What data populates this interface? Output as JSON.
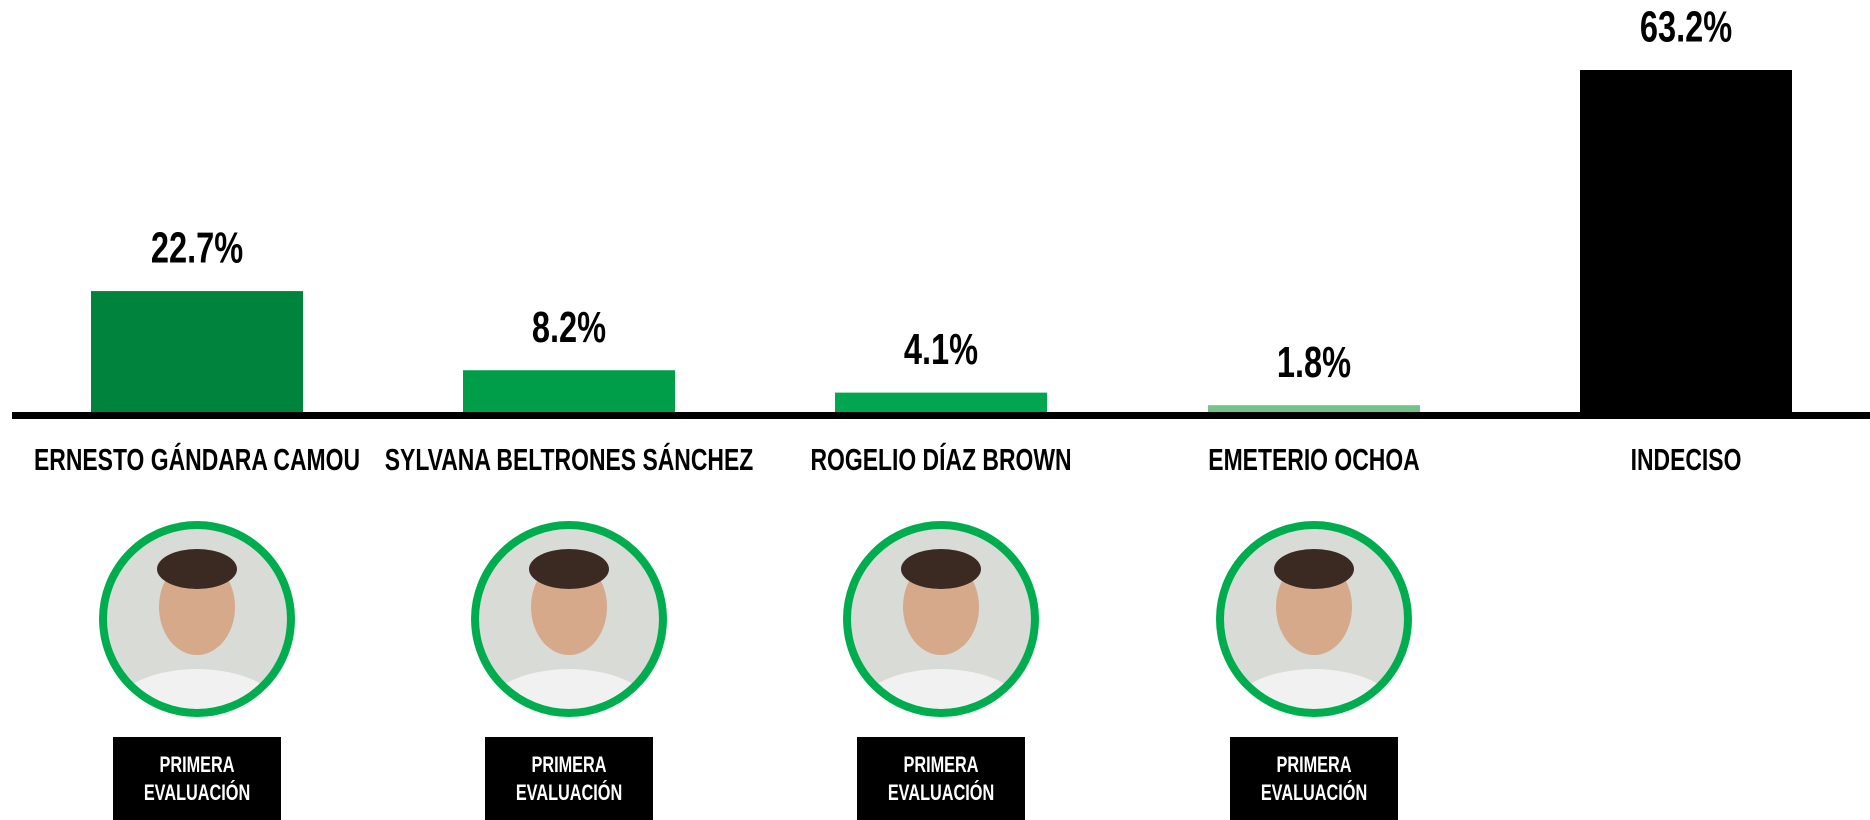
{
  "chart_data": {
    "type": "bar",
    "categories": [
      "ERNESTO GÁNDARA CAMOU",
      "SYLVANA BELTRONES SÁNCHEZ",
      "ROGELIO DÍAZ BROWN",
      "EMETERIO OCHOA",
      "INDECISO"
    ],
    "values": [
      22.7,
      8.2,
      4.1,
      1.8,
      63.2
    ],
    "value_labels": [
      "22.7%",
      "8.2%",
      "4.1%",
      "1.8%",
      "63.2%"
    ],
    "colors": [
      "#00843d",
      "#009e49",
      "#00a650",
      "#74c48a",
      "#000000"
    ],
    "badges": [
      [
        "PRIMERA",
        "EVALUACIÓN"
      ],
      [
        "PRIMERA",
        "EVALUACIÓN"
      ],
      [
        "PRIMERA",
        "EVALUACIÓN"
      ],
      [
        "PRIMERA",
        "EVALUACIÓN"
      ],
      null
    ]
  }
}
